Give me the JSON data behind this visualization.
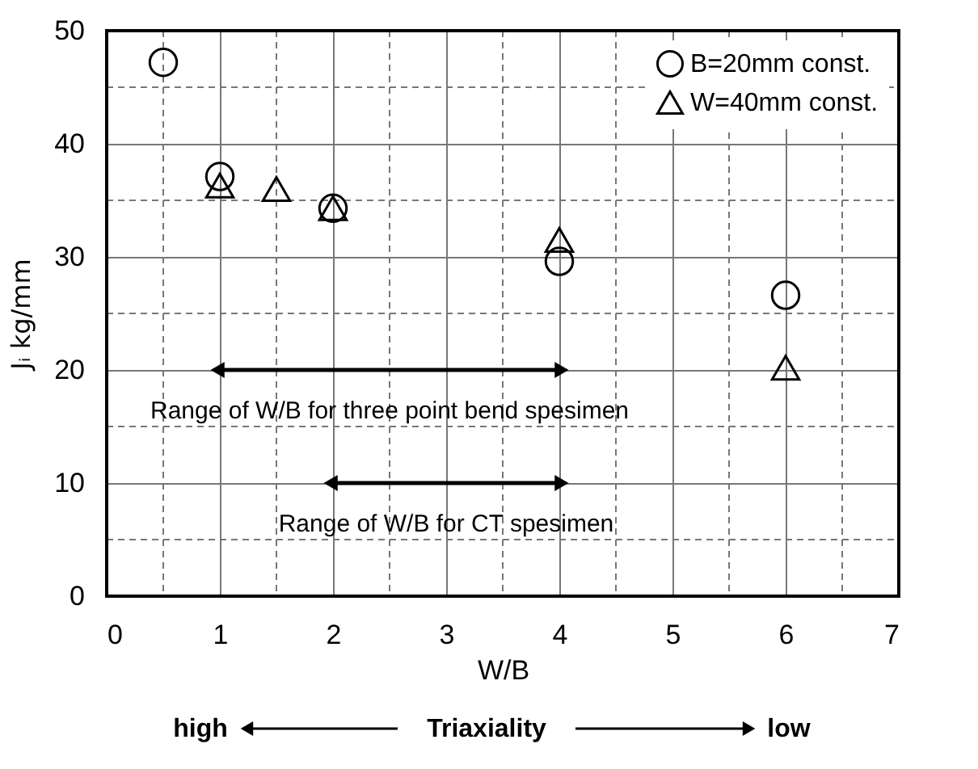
{
  "chart_data": {
    "type": "scatter",
    "xlabel": "W/B",
    "ylabel": "Jᵢ kg/mm",
    "xlim": [
      0,
      7
    ],
    "ylim": [
      0,
      50
    ],
    "xticks": [
      0,
      {
        "value": 0.5,
        "label": null
      },
      1,
      {
        "value": 1.5,
        "label": null
      },
      2,
      {
        "value": 2.5,
        "label": null
      },
      3,
      {
        "value": 3.5,
        "label": null
      },
      4,
      {
        "value": 4.5,
        "label": null
      },
      5,
      {
        "value": 5.5,
        "label": null
      },
      6,
      {
        "value": 6.5,
        "label": null
      },
      7
    ],
    "yticks": [
      0,
      {
        "value": 5,
        "label": null
      },
      10,
      {
        "value": 15,
        "label": null
      },
      20,
      {
        "value": 25,
        "label": null
      },
      30,
      {
        "value": 35,
        "label": null
      },
      40,
      {
        "value": 45,
        "label": null
      },
      50
    ],
    "grid": true,
    "legend": "top right",
    "series": [
      {
        "name": "B=20mm const.",
        "color": "#000000",
        "marker": "circle",
        "x": [
          0.5,
          1,
          2,
          4,
          6
        ],
        "values": [
          47.2,
          37.1,
          34.3,
          29.6,
          26.6
        ]
      },
      {
        "name": "W=40mm const.",
        "color": "#000000",
        "marker": "triangle",
        "x": [
          1,
          1.5,
          2,
          4,
          6
        ],
        "values": [
          36.3,
          36,
          34.3,
          31.5,
          20.2
        ]
      },
      {
        "type": "line",
        "color": "#000000",
        "marker": "triangle",
        "x": [
          1,
          4
        ],
        "values": [
          20,
          20
        ]
      },
      {
        "type": "line",
        "color": "#000000",
        "marker": "triangle",
        "x": [
          2,
          4
        ],
        "values": [
          10,
          10
        ]
      }
    ],
    "annotations": [
      {
        "text": "Range of W/B for three point bend spesimen",
        "x": 2.5,
        "y": 20
      },
      {
        "text": "Range of W/B for CT spesimen",
        "x": 3,
        "y": 10
      },
      "high",
      "Triaxiality",
      "low"
    ]
  }
}
